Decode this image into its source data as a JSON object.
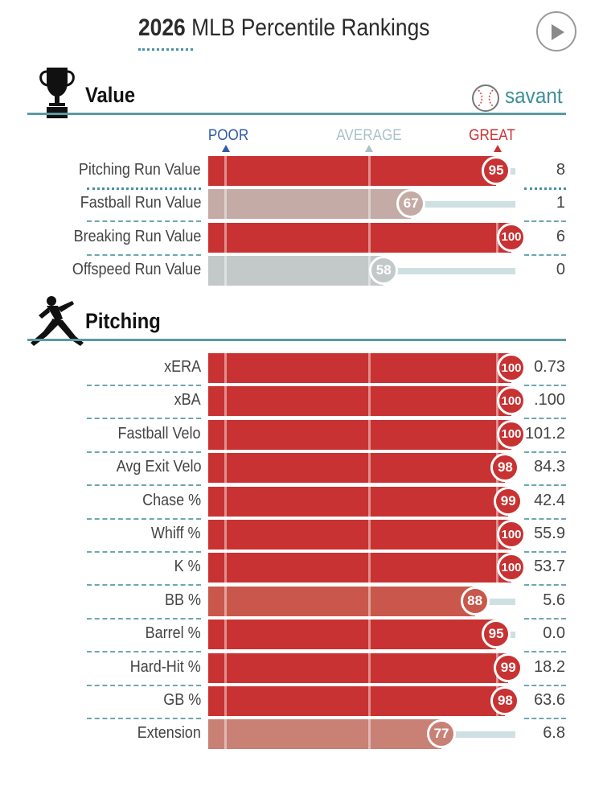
{
  "header": {
    "title_year": "2026",
    "title_text": " MLB Percentile Rankings"
  },
  "brand": {
    "name": "savant"
  },
  "scale": {
    "poor": "POOR",
    "average": "AVERAGE",
    "great": "GREAT"
  },
  "colors": {
    "great": "#c83232",
    "poor": "#325ac8",
    "average": "#b4c8cc",
    "teal": "#4a90a8"
  },
  "sections": [
    {
      "title": "Value",
      "icon": "trophy-icon",
      "rows": [
        {
          "label": "Pitching Run Value",
          "percentile": 95,
          "value": "8",
          "color": "#c83232"
        },
        {
          "label": "Fastball Run Value",
          "percentile": 67,
          "value": "1",
          "color": "#c4aba5"
        },
        {
          "label": "Breaking Run Value",
          "percentile": 100,
          "value": "6",
          "color": "#c83232"
        },
        {
          "label": "Offspeed Run Value",
          "percentile": 58,
          "value": "0",
          "color": "#c3c8c8"
        }
      ]
    },
    {
      "title": "Pitching",
      "icon": "pitcher-icon",
      "rows": [
        {
          "label": "xERA",
          "percentile": 100,
          "value": "0.73",
          "color": "#c83232"
        },
        {
          "label": "xBA",
          "percentile": 100,
          "value": ".100",
          "color": "#c83232"
        },
        {
          "label": "Fastball Velo",
          "percentile": 100,
          "value": "101.2",
          "color": "#c83232"
        },
        {
          "label": "Avg Exit Velo",
          "percentile": 98,
          "value": "84.3",
          "color": "#c83232"
        },
        {
          "label": "Chase %",
          "percentile": 99,
          "value": "42.4",
          "color": "#c83232"
        },
        {
          "label": "Whiff %",
          "percentile": 100,
          "value": "55.9",
          "color": "#c83232"
        },
        {
          "label": "K %",
          "percentile": 100,
          "value": "53.7",
          "color": "#c83232"
        },
        {
          "label": "BB %",
          "percentile": 88,
          "value": "5.6",
          "color": "#c9574b"
        },
        {
          "label": "Barrel %",
          "percentile": 95,
          "value": "0.0",
          "color": "#c83232"
        },
        {
          "label": "Hard-Hit %",
          "percentile": 99,
          "value": "18.2",
          "color": "#c83232"
        },
        {
          "label": "GB %",
          "percentile": 98,
          "value": "63.6",
          "color": "#c83232"
        },
        {
          "label": "Extension",
          "percentile": 77,
          "value": "6.8",
          "color": "#c98075"
        }
      ]
    }
  ]
}
